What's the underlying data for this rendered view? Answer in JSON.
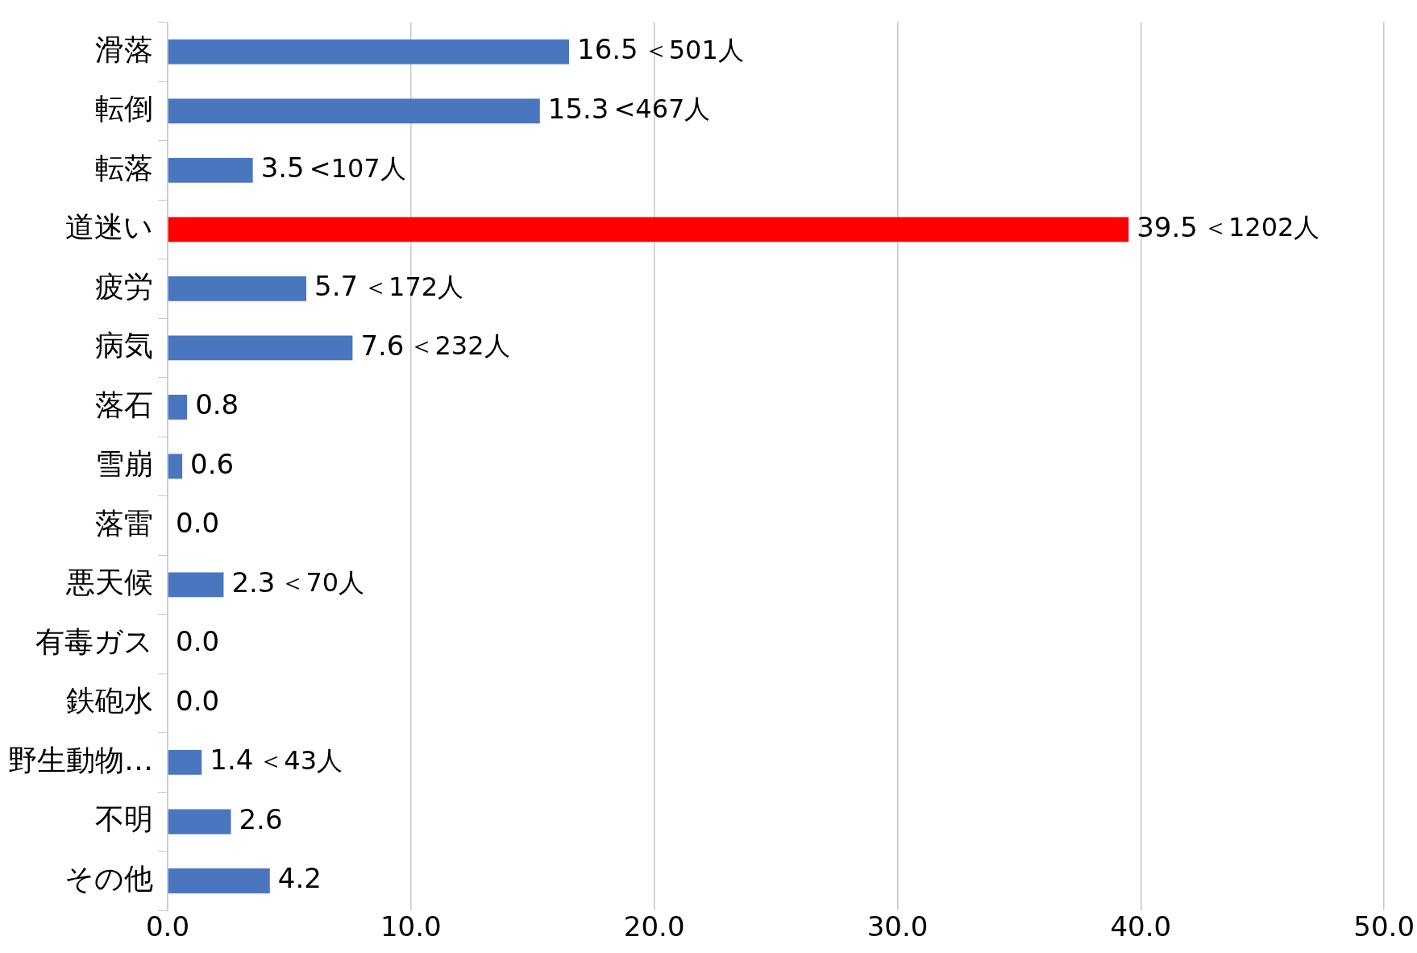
{
  "chart_data": {
    "type": "bar",
    "orientation": "horizontal",
    "categories": [
      "滑落",
      "転倒",
      "転落",
      "道迷い",
      "疲労",
      "病気",
      "落石",
      "雪崩",
      "落雷",
      "悪天候",
      "有毒ガス",
      "鉄砲水",
      "野生動物…",
      "不明",
      "その他"
    ],
    "values": [
      16.5,
      15.3,
      3.5,
      39.5,
      5.7,
      7.6,
      0.8,
      0.6,
      0.0,
      2.3,
      0.0,
      0.0,
      1.4,
      2.6,
      4.2
    ],
    "value_labels": [
      "16.5",
      "15.3",
      "3.5",
      "39.5",
      "5.7",
      "7.6",
      "0.8",
      "0.6",
      "0.0",
      "2.3",
      "0.0",
      "0.0",
      "1.4",
      "2.6",
      "4.2"
    ],
    "colors": [
      "#4a76c0",
      "#4a76c0",
      "#4a76c0",
      "#ff0000",
      "#4a76c0",
      "#4a76c0",
      "#4a76c0",
      "#4a76c0",
      "#4a76c0",
      "#4a76c0",
      "#4a76c0",
      "#4a76c0",
      "#4a76c0",
      "#4a76c0",
      "#4a76c0"
    ],
    "xlim": [
      0,
      50
    ],
    "xticks": [
      {
        "value": 0,
        "label": "0.0"
      },
      {
        "value": 10,
        "label": "10.0"
      },
      {
        "value": 20,
        "label": "20.0"
      },
      {
        "value": 30,
        "label": "30.0"
      },
      {
        "value": 40,
        "label": "40.0"
      },
      {
        "value": 50,
        "label": "50.0"
      }
    ],
    "grid": "x",
    "legend": false,
    "annotations": [
      {
        "text": "＜501人",
        "x": 16.5,
        "y": "滑落"
      },
      {
        "text": "<467人",
        "x": 15.3,
        "y": "転倒"
      },
      {
        "text": "<107人",
        "x": 3.5,
        "y": "転落"
      },
      {
        "text": "＜1202人",
        "x": 39.5,
        "y": "道迷い"
      },
      {
        "text": "＜172人",
        "x": 5.7,
        "y": "疲労"
      },
      {
        "text": "＜232人",
        "x": 7.6,
        "y": "病気"
      },
      {
        "text": "＜70人",
        "x": 2.3,
        "y": "悪天候"
      },
      {
        "text": "＜43人",
        "x": 1.4,
        "y": "野生動物…"
      }
    ]
  }
}
